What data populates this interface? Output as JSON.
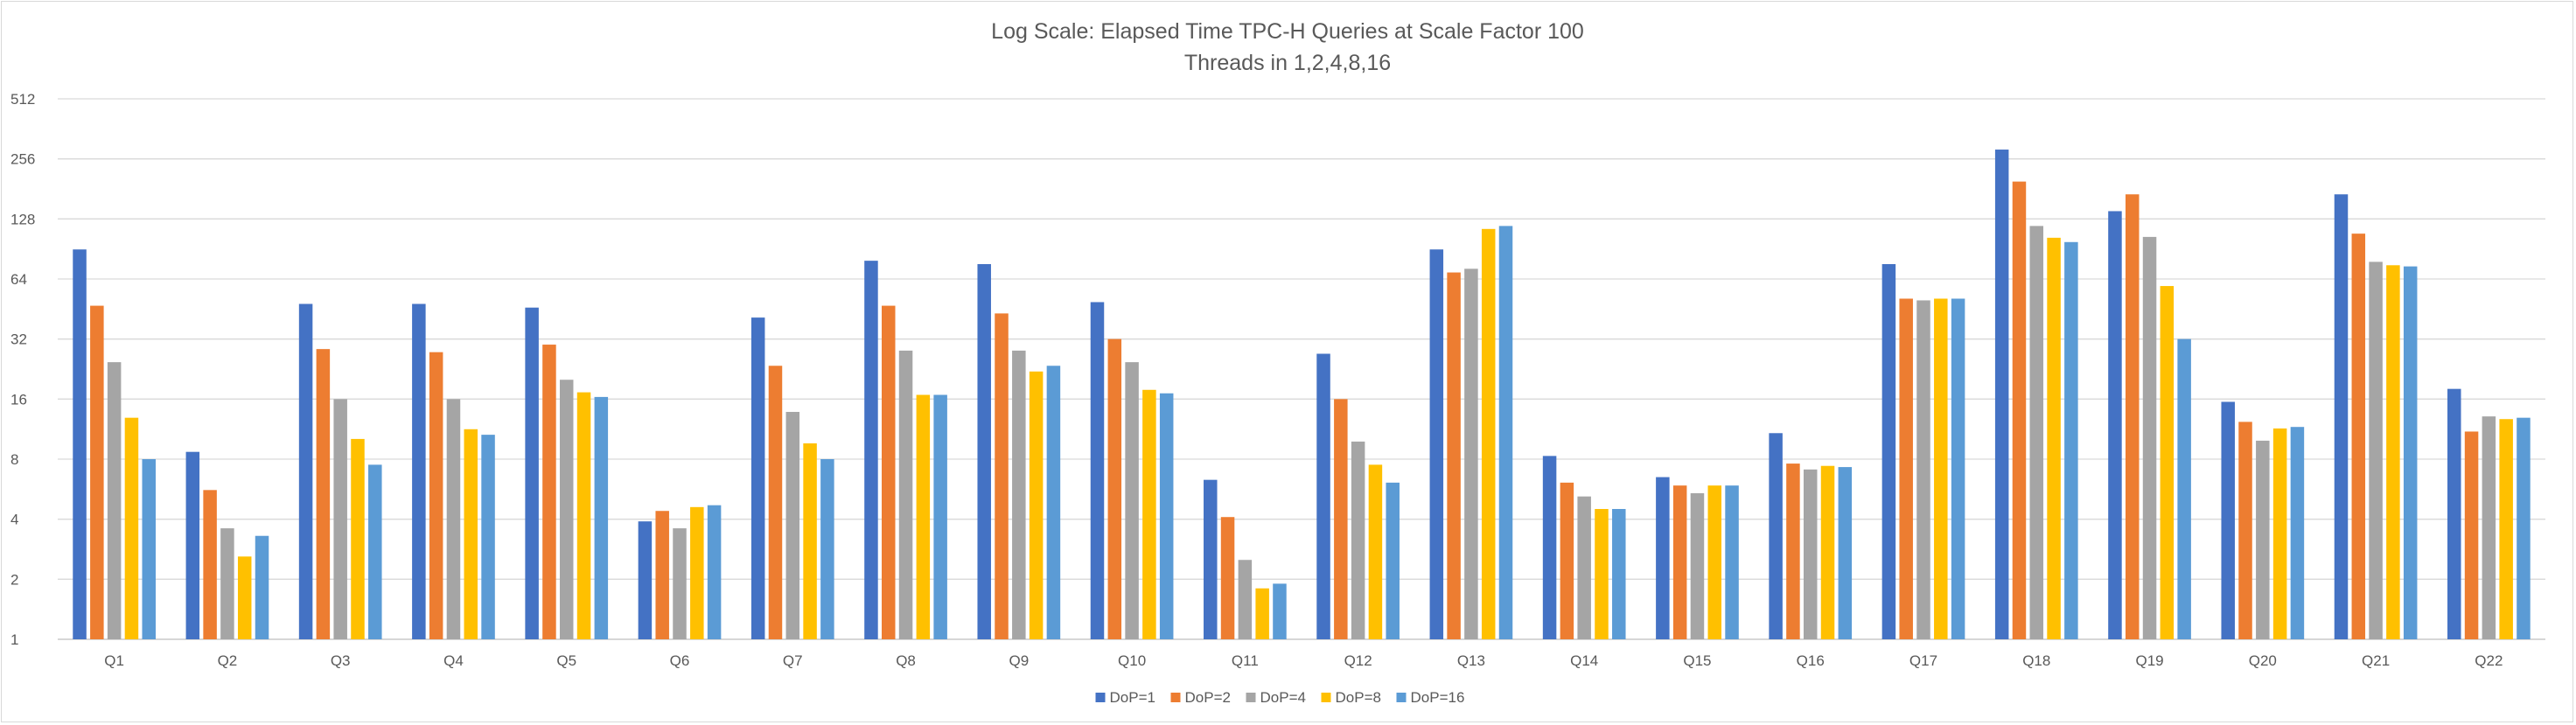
{
  "chart_data": {
    "type": "bar",
    "title": "Log Scale:  Elapsed Time TPC-H Queries at Scale Factor 100",
    "subtitle": "Threads in 1,2,4,8,16",
    "xlabel": "",
    "ylabel": "",
    "yscale": "log2",
    "ylim": [
      1,
      512
    ],
    "yticks": [
      1,
      2,
      4,
      8,
      16,
      32,
      64,
      128,
      256,
      512
    ],
    "grid": true,
    "legend_position": "bottom",
    "categories": [
      "Q1",
      "Q2",
      "Q3",
      "Q4",
      "Q5",
      "Q6",
      "Q7",
      "Q8",
      "Q9",
      "Q10",
      "Q11",
      "Q12",
      "Q13",
      "Q14",
      "Q15",
      "Q16",
      "Q17",
      "Q18",
      "Q19",
      "Q20",
      "Q21",
      "Q22"
    ],
    "series": [
      {
        "name": "DoP=1",
        "color": "#4472C4",
        "values": [
          90,
          8.7,
          48,
          48,
          46,
          3.9,
          41,
          79,
          76,
          49,
          6.3,
          27,
          90,
          8.3,
          6.5,
          10.8,
          76,
          285,
          140,
          15.5,
          170,
          18
        ]
      },
      {
        "name": "DoP=2",
        "color": "#ED7D31",
        "values": [
          47,
          5.6,
          28.5,
          27.5,
          30,
          4.4,
          23.5,
          47,
          43,
          32,
          4.1,
          16,
          69,
          6.1,
          5.9,
          7.6,
          51,
          197,
          170,
          12.3,
          108,
          11
        ]
      },
      {
        "name": "DoP=4",
        "color": "#A5A5A5",
        "values": [
          24.5,
          3.6,
          16,
          16,
          20,
          3.6,
          13.8,
          28,
          28,
          24.5,
          2.5,
          9.8,
          72,
          5.2,
          5.4,
          7.1,
          50,
          118,
          104,
          9.9,
          78,
          13.1
        ]
      },
      {
        "name": "DoP=8",
        "color": "#FFC000",
        "values": [
          12.9,
          2.6,
          10.1,
          11.3,
          17.3,
          4.6,
          9.6,
          16.8,
          22,
          17.8,
          1.8,
          7.5,
          114,
          4.5,
          5.9,
          7.4,
          51,
          103,
          59,
          11.4,
          75,
          12.7
        ]
      },
      {
        "name": "DoP=16",
        "color": "#5B9BD5",
        "values": [
          8,
          3.3,
          7.5,
          10.6,
          16.4,
          4.7,
          8,
          16.8,
          23.5,
          17.1,
          1.9,
          6.1,
          118,
          4.5,
          5.9,
          7.3,
          51,
          98,
          32,
          11.6,
          74,
          12.9
        ]
      }
    ]
  }
}
